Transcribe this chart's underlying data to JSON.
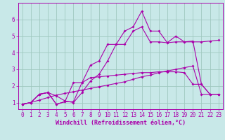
{
  "background_color": "#c8e8e8",
  "grid_color": "#a0c8c0",
  "line_color": "#aa00aa",
  "xlim": [
    -0.5,
    23.5
  ],
  "ylim": [
    0.6,
    7.0
  ],
  "xlabel": "Windchill (Refroidissement éolien,°C)",
  "xlabel_fontsize": 6.0,
  "xticks": [
    0,
    1,
    2,
    3,
    4,
    5,
    6,
    7,
    8,
    9,
    10,
    11,
    12,
    13,
    14,
    15,
    16,
    17,
    18,
    19,
    20,
    21,
    22,
    23
  ],
  "yticks": [
    1,
    2,
    3,
    4,
    5,
    6
  ],
  "tick_fontsize": 5.5,
  "series": [
    {
      "x": [
        0,
        1,
        2,
        3,
        4,
        5,
        6,
        7,
        8,
        9,
        10,
        11,
        12,
        13,
        14,
        15,
        16,
        17,
        18,
        19,
        20,
        21,
        22,
        23
      ],
      "y": [
        0.9,
        1.0,
        1.15,
        1.3,
        1.45,
        1.55,
        1.65,
        1.75,
        1.85,
        1.95,
        2.05,
        2.15,
        2.25,
        2.4,
        2.55,
        2.65,
        2.8,
        2.9,
        3.0,
        3.1,
        3.2,
        1.5,
        1.5,
        1.5
      ]
    },
    {
      "x": [
        0,
        1,
        2,
        3,
        4,
        5,
        6,
        7,
        8,
        9,
        10,
        11,
        12,
        13,
        14,
        15,
        16,
        17,
        18,
        19,
        20,
        21,
        22,
        23
      ],
      "y": [
        0.9,
        1.0,
        1.5,
        1.6,
        1.4,
        1.1,
        1.0,
        1.6,
        2.3,
        2.7,
        3.5,
        4.5,
        4.5,
        5.3,
        5.55,
        4.65,
        4.65,
        4.6,
        4.65,
        4.65,
        4.65,
        4.65,
        4.7,
        4.75
      ]
    },
    {
      "x": [
        0,
        1,
        2,
        3,
        4,
        5,
        6,
        7,
        8,
        9,
        10,
        11,
        12,
        13,
        14,
        15,
        16,
        17,
        18,
        19,
        20,
        21,
        22,
        23
      ],
      "y": [
        0.9,
        1.0,
        1.5,
        1.6,
        0.9,
        1.05,
        1.05,
        2.2,
        3.25,
        3.5,
        4.5,
        4.5,
        5.3,
        5.55,
        6.5,
        5.3,
        5.3,
        4.6,
        5.0,
        4.65,
        4.7,
        2.1,
        1.5,
        1.5
      ]
    },
    {
      "x": [
        0,
        1,
        2,
        3,
        4,
        5,
        6,
        7,
        8,
        9,
        10,
        11,
        12,
        13,
        14,
        15,
        16,
        17,
        18,
        19,
        20,
        21,
        22,
        23
      ],
      "y": [
        0.9,
        1.0,
        1.5,
        1.6,
        0.9,
        1.05,
        2.2,
        2.2,
        2.5,
        2.55,
        2.6,
        2.65,
        2.7,
        2.75,
        2.8,
        2.8,
        2.85,
        2.85,
        2.85,
        2.8,
        2.1,
        2.1,
        1.5,
        1.5
      ]
    }
  ]
}
